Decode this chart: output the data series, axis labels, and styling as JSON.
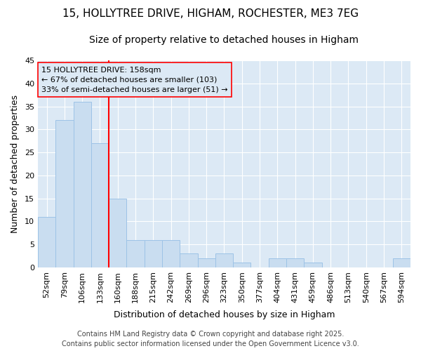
{
  "title_line1": "15, HOLLYTREE DRIVE, HIGHAM, ROCHESTER, ME3 7EG",
  "title_line2": "Size of property relative to detached houses in Higham",
  "xlabel": "Distribution of detached houses by size in Higham",
  "ylabel": "Number of detached properties",
  "categories": [
    "52sqm",
    "79sqm",
    "106sqm",
    "133sqm",
    "160sqm",
    "188sqm",
    "215sqm",
    "242sqm",
    "269sqm",
    "296sqm",
    "323sqm",
    "350sqm",
    "377sqm",
    "404sqm",
    "431sqm",
    "459sqm",
    "486sqm",
    "513sqm",
    "540sqm",
    "567sqm",
    "594sqm"
  ],
  "values": [
    11,
    32,
    36,
    27,
    15,
    6,
    6,
    6,
    3,
    2,
    3,
    1,
    0,
    2,
    2,
    1,
    0,
    0,
    0,
    0,
    2
  ],
  "bar_color": "#c9ddf0",
  "bar_edge_color": "#9dc3e6",
  "ylim": [
    0,
    45
  ],
  "yticks": [
    0,
    5,
    10,
    15,
    20,
    25,
    30,
    35,
    40,
    45
  ],
  "property_line_idx": 4,
  "annotation_text_l1": "15 HOLLYTREE DRIVE: 158sqm",
  "annotation_text_l2": "← 67% of detached houses are smaller (103)",
  "annotation_text_l3": "33% of semi-detached houses are larger (51) →",
  "footer_line1": "Contains HM Land Registry data © Crown copyright and database right 2025.",
  "footer_line2": "Contains public sector information licensed under the Open Government Licence v3.0.",
  "plot_bg_color": "#dce9f5",
  "fig_bg_color": "#ffffff",
  "grid_color": "#ffffff",
  "title_fontsize": 11,
  "subtitle_fontsize": 10,
  "axis_label_fontsize": 9,
  "tick_fontsize": 8,
  "annotation_fontsize": 8,
  "footer_fontsize": 7
}
